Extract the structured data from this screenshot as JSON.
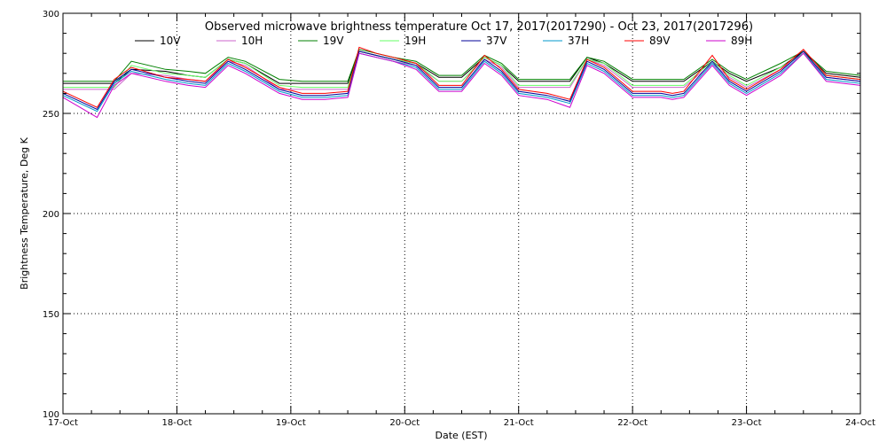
{
  "chart_data": {
    "type": "line",
    "title": "Observed microwave brightness temperature Oct 17, 2017(2017290) - Oct 23, 2017(2017296)",
    "xlabel": "Date (EST)",
    "ylabel": "Brightness Temperature, Deg K",
    "xlim": [
      0,
      7
    ],
    "ylim": [
      100,
      300
    ],
    "x_ticks": [
      {
        "v": 0,
        "label": "17-Oct"
      },
      {
        "v": 1,
        "label": "18-Oct"
      },
      {
        "v": 2,
        "label": "19-Oct"
      },
      {
        "v": 3,
        "label": "20-Oct"
      },
      {
        "v": 4,
        "label": "21-Oct"
      },
      {
        "v": 5,
        "label": "22-Oct"
      },
      {
        "v": 6,
        "label": "23-Oct"
      },
      {
        "v": 7,
        "label": "24-Oct"
      }
    ],
    "y_ticks": [
      100,
      150,
      200,
      250,
      300
    ],
    "grid": true,
    "legend_position": "top",
    "series": [
      {
        "name": "10V",
        "color": "#000000",
        "x": [
          0,
          0.15,
          0.3,
          0.45,
          0.6,
          0.9,
          1.1,
          1.25,
          1.45,
          1.6,
          1.9,
          2.1,
          2.3,
          2.5,
          2.6,
          2.75,
          2.9,
          3.1,
          3.3,
          3.5,
          3.7,
          3.85,
          4.0,
          4.25,
          4.45,
          4.6,
          4.75,
          5.0,
          5.25,
          5.35,
          5.45,
          5.7,
          5.85,
          6.0,
          6.3,
          6.5,
          6.7,
          7.0
        ],
        "y": [
          265,
          265,
          265,
          265,
          272,
          271,
          269,
          268,
          277,
          275,
          265,
          265,
          265,
          265,
          281,
          279,
          277,
          275,
          268,
          268,
          278,
          274,
          266,
          266,
          266,
          278,
          275,
          266,
          266,
          266,
          266,
          276,
          270,
          266,
          273,
          281,
          270,
          268
        ]
      },
      {
        "name": "10H",
        "color": "#cc66cc",
        "x": [
          0,
          0.15,
          0.3,
          0.45,
          0.6,
          0.9,
          1.1,
          1.25,
          1.45,
          1.6,
          1.9,
          2.1,
          2.3,
          2.5,
          2.6,
          2.75,
          2.9,
          3.1,
          3.3,
          3.5,
          3.7,
          3.85,
          4.0,
          4.25,
          4.45,
          4.6,
          4.75,
          5.0,
          5.25,
          5.35,
          5.45,
          5.7,
          5.85,
          6.0,
          6.3,
          6.5,
          6.7,
          7.0
        ],
        "y": [
          262,
          262,
          262,
          262,
          270,
          269,
          267,
          266,
          276,
          274,
          262,
          262,
          262,
          262,
          280,
          278,
          276,
          274,
          266,
          266,
          277,
          273,
          263,
          263,
          263,
          277,
          274,
          263,
          263,
          263,
          263,
          275,
          268,
          263,
          272,
          280,
          268,
          266
        ]
      },
      {
        "name": "19V",
        "color": "#008000",
        "x": [
          0,
          0.15,
          0.3,
          0.45,
          0.6,
          0.9,
          1.1,
          1.25,
          1.45,
          1.6,
          1.9,
          2.1,
          2.3,
          2.5,
          2.6,
          2.75,
          2.9,
          3.1,
          3.3,
          3.5,
          3.7,
          3.85,
          4.0,
          4.25,
          4.45,
          4.6,
          4.75,
          5.0,
          5.25,
          5.35,
          5.45,
          5.7,
          5.85,
          6.0,
          6.3,
          6.5,
          6.7,
          7.0
        ],
        "y": [
          266,
          266,
          266,
          266,
          276,
          272,
          271,
          270,
          278,
          276,
          267,
          266,
          266,
          266,
          282,
          280,
          278,
          276,
          269,
          269,
          279,
          275,
          267,
          267,
          267,
          278,
          276,
          267,
          267,
          267,
          267,
          277,
          271,
          267,
          275,
          281,
          271,
          269
        ]
      },
      {
        "name": "19H",
        "color": "#66ff66",
        "x": [
          0,
          0.15,
          0.3,
          0.45,
          0.6,
          0.9,
          1.1,
          1.25,
          1.45,
          1.6,
          1.9,
          2.1,
          2.3,
          2.5,
          2.6,
          2.75,
          2.9,
          3.1,
          3.3,
          3.5,
          3.7,
          3.85,
          4.0,
          4.25,
          4.45,
          4.6,
          4.75,
          5.0,
          5.25,
          5.35,
          5.45,
          5.7,
          5.85,
          6.0,
          6.3,
          6.5,
          6.7,
          7.0
        ],
        "y": [
          263,
          263,
          263,
          263,
          274,
          270,
          269,
          268,
          277,
          275,
          264,
          263,
          263,
          263,
          281,
          279,
          277,
          275,
          266,
          266,
          278,
          274,
          264,
          264,
          264,
          277,
          275,
          264,
          264,
          264,
          264,
          276,
          269,
          264,
          273,
          280,
          269,
          267
        ]
      },
      {
        "name": "37V",
        "color": "#000099",
        "x": [
          0,
          0.15,
          0.3,
          0.45,
          0.6,
          0.9,
          1.1,
          1.25,
          1.45,
          1.6,
          1.9,
          2.1,
          2.3,
          2.5,
          2.6,
          2.75,
          2.9,
          3.1,
          3.3,
          3.5,
          3.7,
          3.85,
          4.0,
          4.25,
          4.45,
          4.6,
          4.75,
          5.0,
          5.25,
          5.35,
          5.45,
          5.7,
          5.85,
          6.0,
          6.3,
          6.5,
          6.7,
          7.0
        ],
        "y": [
          260,
          256,
          252,
          266,
          272,
          268,
          266,
          265,
          276,
          272,
          262,
          259,
          259,
          260,
          281,
          279,
          277,
          274,
          263,
          263,
          277,
          271,
          261,
          259,
          256,
          276,
          272,
          260,
          260,
          259,
          260,
          276,
          266,
          261,
          271,
          281,
          268,
          266
        ]
      },
      {
        "name": "37H",
        "color": "#0099cc",
        "x": [
          0,
          0.15,
          0.3,
          0.45,
          0.6,
          0.9,
          1.1,
          1.25,
          1.45,
          1.6,
          1.9,
          2.1,
          2.3,
          2.5,
          2.6,
          2.75,
          2.9,
          3.1,
          3.3,
          3.5,
          3.7,
          3.85,
          4.0,
          4.25,
          4.45,
          4.6,
          4.75,
          5.0,
          5.25,
          5.35,
          5.45,
          5.7,
          5.85,
          6.0,
          6.3,
          6.5,
          6.7,
          7.0
        ],
        "y": [
          259,
          255,
          251,
          265,
          271,
          267,
          265,
          264,
          275,
          271,
          261,
          258,
          258,
          259,
          280,
          278,
          276,
          273,
          262,
          262,
          276,
          270,
          260,
          258,
          255,
          275,
          271,
          259,
          259,
          258,
          259,
          275,
          265,
          260,
          270,
          280,
          267,
          265
        ]
      },
      {
        "name": "89V",
        "color": "#ff0000",
        "x": [
          0,
          0.15,
          0.3,
          0.45,
          0.6,
          0.9,
          1.1,
          1.25,
          1.45,
          1.6,
          1.9,
          2.1,
          2.3,
          2.5,
          2.6,
          2.75,
          2.9,
          3.1,
          3.3,
          3.5,
          3.7,
          3.85,
          4.0,
          4.25,
          4.45,
          4.6,
          4.75,
          5.0,
          5.25,
          5.35,
          5.45,
          5.7,
          5.85,
          6.0,
          6.3,
          6.5,
          6.7,
          7.0
        ],
        "y": [
          261,
          257,
          253,
          267,
          273,
          268,
          267,
          266,
          277,
          273,
          263,
          260,
          260,
          261,
          283,
          280,
          278,
          275,
          264,
          264,
          279,
          272,
          262,
          260,
          257,
          277,
          273,
          261,
          261,
          260,
          261,
          279,
          267,
          262,
          272,
          282,
          269,
          267
        ]
      },
      {
        "name": "89H",
        "color": "#cc00cc",
        "x": [
          0,
          0.15,
          0.3,
          0.45,
          0.6,
          0.9,
          1.1,
          1.25,
          1.45,
          1.6,
          1.9,
          2.1,
          2.3,
          2.5,
          2.6,
          2.75,
          2.9,
          3.1,
          3.3,
          3.5,
          3.7,
          3.85,
          4.0,
          4.25,
          4.45,
          4.6,
          4.75,
          5.0,
          5.25,
          5.35,
          5.45,
          5.7,
          5.85,
          6.0,
          6.3,
          6.5,
          6.7,
          7.0
        ],
        "y": [
          258,
          253,
          248,
          264,
          270,
          266,
          264,
          263,
          274,
          270,
          260,
          257,
          257,
          258,
          280,
          278,
          276,
          272,
          261,
          261,
          275,
          269,
          259,
          257,
          253,
          274,
          270,
          258,
          258,
          257,
          258,
          274,
          264,
          259,
          269,
          280,
          266,
          264
        ]
      }
    ]
  }
}
